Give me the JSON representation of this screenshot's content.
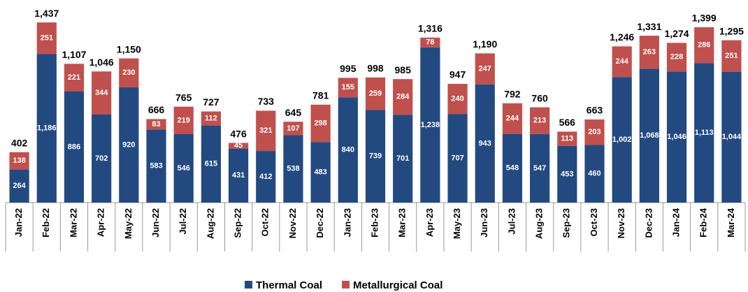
{
  "chart_data": {
    "type": "stacked_bar",
    "categories": [
      "Jan-22",
      "Feb-22",
      "Mar-22",
      "Apr-22",
      "May-22",
      "Jun-22",
      "Jul-22",
      "Aug-22",
      "Sep-22",
      "Oct-22",
      "Nov-22",
      "Dec-22",
      "Jan-23",
      "Feb-23",
      "Mar-23",
      "Apr-23",
      "May-23",
      "Jun-23",
      "Jul-23",
      "Aug-23",
      "Sep-23",
      "Oct-23",
      "Nov-23",
      "Dec-23",
      "Jan-24",
      "Feb-24",
      "Mar-24"
    ],
    "series": [
      {
        "name": "Thermal Coal",
        "color": "#234a80",
        "values": [
          264,
          1186,
          886,
          702,
          920,
          583,
          546,
          615,
          431,
          412,
          538,
          483,
          840,
          739,
          701,
          1238,
          707,
          943,
          548,
          547,
          453,
          460,
          1002,
          1068,
          1046,
          1113,
          1044
        ],
        "value_labels": [
          "264",
          "1,186",
          "886",
          "702",
          "920",
          "583",
          "546",
          "615",
          "431",
          "412",
          "538",
          "483",
          "840",
          "739",
          "701",
          "1,238",
          "707",
          "943",
          "548",
          "547",
          "453",
          "460",
          "1,002",
          "1,068",
          "1,046",
          "1,113",
          "1,044"
        ]
      },
      {
        "name": "Metallurgical Coal",
        "color": "#c0504d",
        "values": [
          138,
          251,
          221,
          344,
          230,
          83,
          219,
          112,
          45,
          321,
          107,
          298,
          155,
          259,
          284,
          78,
          240,
          247,
          244,
          213,
          113,
          203,
          244,
          263,
          228,
          286,
          251
        ]
      }
    ],
    "totals": [
      402,
      1437,
      1107,
      1046,
      1150,
      666,
      765,
      727,
      476,
      733,
      645,
      781,
      995,
      998,
      985,
      1316,
      947,
      1190,
      792,
      760,
      566,
      663,
      1246,
      1331,
      1274,
      1399,
      1295
    ],
    "total_labels": [
      "402",
      "1,437",
      "1,107",
      "1,046",
      "1,150",
      "666",
      "765",
      "727",
      "476",
      "733",
      "645",
      "781",
      "995",
      "998",
      "985",
      "1,316",
      "947",
      "1,190",
      "792",
      "760",
      "566",
      "663",
      "1,246",
      "1,331",
      "1,274",
      "1,399",
      "1,295"
    ],
    "ylim": [
      0,
      1500
    ]
  }
}
